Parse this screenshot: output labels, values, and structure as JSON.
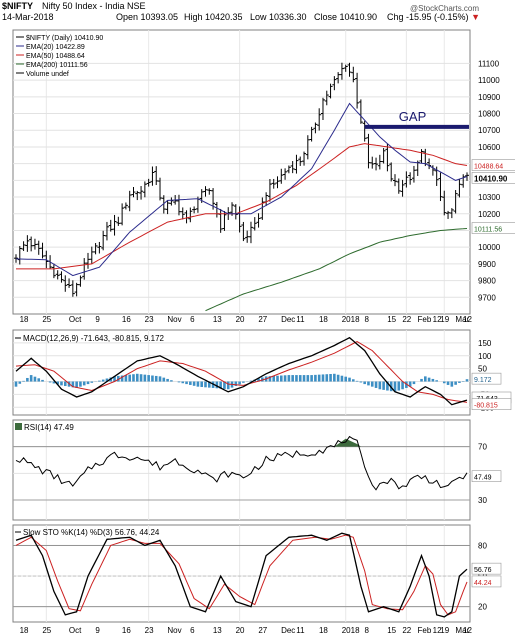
{
  "header": {
    "symbol": "$NIFTY",
    "name": "Nifty 50 Index - India  NSE",
    "date": "14-Mar-2018",
    "open": "Open 10393.05",
    "high": "High 10420.35",
    "low": "Low 10336.30",
    "close": "Close 10410.90",
    "chg": "Chg -15.95 (-0.15%)",
    "watermark": "@StockCharts.com"
  },
  "colors": {
    "price": "#000000",
    "ema20": "#2b2b8c",
    "ema50": "#cc2222",
    "ema200": "#2e6b2e",
    "gap": "#1a1a6e",
    "macd": "#000000",
    "signal": "#cc2222",
    "hist": "#3d8fc4",
    "rsi_fill": "#3d6b3d",
    "rsi": "#000000",
    "sto_k": "#000000",
    "sto_d": "#cc2222"
  },
  "chart_data": [
    {
      "type": "ohlc",
      "title": "$NIFTY (Daily) 10410.90",
      "legend": [
        {
          "name": "$NIFTY (Daily)",
          "value": "10410.90"
        },
        {
          "name": "EMA(20)",
          "value": "10422.89"
        },
        {
          "name": "EMA(50)",
          "value": "10488.64"
        },
        {
          "name": "EMA(200)",
          "value": "10111.56"
        },
        {
          "name": "Volume undef",
          "value": ""
        }
      ],
      "ylim": [
        9600,
        11300
      ],
      "yticks": [
        9700,
        9800,
        9900,
        10000,
        10100,
        10200,
        10300,
        10400,
        10500,
        10600,
        10700,
        10800,
        10900,
        11000,
        11100
      ],
      "value_labels": [
        "10488.64",
        "10410.90",
        "10111.56"
      ],
      "annotation": "GAP",
      "gap_level": 10720,
      "anchors": {
        "close": [
          [
            0,
            9950
          ],
          [
            3,
            10040
          ],
          [
            6,
            9980
          ],
          [
            9,
            9880
          ],
          [
            12,
            9800
          ],
          [
            15,
            9730
          ],
          [
            18,
            9880
          ],
          [
            21,
            9990
          ],
          [
            24,
            10100
          ],
          [
            27,
            10160
          ],
          [
            30,
            10320
          ],
          [
            33,
            10340
          ],
          [
            36,
            10440
          ],
          [
            39,
            10240
          ],
          [
            42,
            10270
          ],
          [
            45,
            10160
          ],
          [
            48,
            10290
          ],
          [
            51,
            10340
          ],
          [
            54,
            10130
          ],
          [
            57,
            10260
          ],
          [
            60,
            10050
          ],
          [
            63,
            10120
          ],
          [
            66,
            10330
          ],
          [
            69,
            10400
          ],
          [
            72,
            10480
          ],
          [
            75,
            10520
          ],
          [
            78,
            10680
          ],
          [
            81,
            10880
          ],
          [
            84,
            10990
          ],
          [
            87,
            11100
          ],
          [
            89,
            11000
          ],
          [
            91,
            10760
          ],
          [
            93,
            10500
          ],
          [
            95,
            10480
          ],
          [
            97,
            10560
          ],
          [
            99,
            10420
          ],
          [
            101,
            10360
          ],
          [
            103,
            10400
          ],
          [
            105,
            10440
          ],
          [
            107,
            10560
          ],
          [
            109,
            10480
          ],
          [
            111,
            10400
          ],
          [
            113,
            10200
          ],
          [
            115,
            10200
          ],
          [
            117,
            10400
          ],
          [
            119,
            10410
          ]
        ],
        "ema20": [
          [
            0,
            9930
          ],
          [
            8,
            9925
          ],
          [
            15,
            9830
          ],
          [
            22,
            9880
          ],
          [
            30,
            10090
          ],
          [
            40,
            10280
          ],
          [
            48,
            10290
          ],
          [
            56,
            10200
          ],
          [
            62,
            10200
          ],
          [
            70,
            10300
          ],
          [
            78,
            10470
          ],
          [
            84,
            10700
          ],
          [
            88,
            10860
          ],
          [
            92,
            10760
          ],
          [
            96,
            10660
          ],
          [
            100,
            10580
          ],
          [
            104,
            10510
          ],
          [
            108,
            10500
          ],
          [
            112,
            10450
          ],
          [
            116,
            10400
          ],
          [
            119,
            10423
          ]
        ],
        "ema50": [
          [
            0,
            9870
          ],
          [
            10,
            9870
          ],
          [
            20,
            9900
          ],
          [
            30,
            10030
          ],
          [
            40,
            10150
          ],
          [
            50,
            10200
          ],
          [
            58,
            10200
          ],
          [
            66,
            10270
          ],
          [
            74,
            10370
          ],
          [
            82,
            10500
          ],
          [
            88,
            10600
          ],
          [
            92,
            10620
          ],
          [
            98,
            10600
          ],
          [
            104,
            10580
          ],
          [
            110,
            10550
          ],
          [
            116,
            10500
          ],
          [
            119,
            10489
          ]
        ],
        "ema200": [
          [
            50,
            9620
          ],
          [
            60,
            9720
          ],
          [
            70,
            9790
          ],
          [
            80,
            9870
          ],
          [
            88,
            9960
          ],
          [
            96,
            10030
          ],
          [
            104,
            10070
          ],
          [
            112,
            10100
          ],
          [
            119,
            10112
          ]
        ]
      }
    },
    {
      "type": "line",
      "title": "MACD(12,26,9) -71.643, -80.815, 9.172",
      "ylim": [
        -130,
        200
      ],
      "yticks": [
        -100,
        -50,
        0,
        50,
        100,
        150
      ],
      "value_labels": [
        "9.172",
        "-71.643",
        "-80.815"
      ],
      "series": [
        {
          "name": "MACD(12,26,9)",
          "anchors": [
            [
              0,
              40
            ],
            [
              4,
              90
            ],
            [
              8,
              40
            ],
            [
              12,
              -30
            ],
            [
              16,
              -60
            ],
            [
              20,
              -40
            ],
            [
              26,
              20
            ],
            [
              32,
              80
            ],
            [
              38,
              100
            ],
            [
              42,
              70
            ],
            [
              48,
              20
            ],
            [
              52,
              -10
            ],
            [
              56,
              -40
            ],
            [
              60,
              -20
            ],
            [
              66,
              30
            ],
            [
              72,
              70
            ],
            [
              78,
              100
            ],
            [
              84,
              140
            ],
            [
              88,
              170
            ],
            [
              92,
              120
            ],
            [
              96,
              30
            ],
            [
              100,
              -40
            ],
            [
              104,
              -60
            ],
            [
              108,
              -20
            ],
            [
              112,
              -50
            ],
            [
              115,
              -90
            ],
            [
              119,
              -72
            ]
          ]
        },
        {
          "name": "Signal",
          "anchors": [
            [
              0,
              60
            ],
            [
              5,
              65
            ],
            [
              10,
              40
            ],
            [
              15,
              -20
            ],
            [
              20,
              -35
            ],
            [
              26,
              0
            ],
            [
              32,
              50
            ],
            [
              38,
              80
            ],
            [
              44,
              70
            ],
            [
              50,
              40
            ],
            [
              56,
              -10
            ],
            [
              60,
              -15
            ],
            [
              66,
              10
            ],
            [
              72,
              45
            ],
            [
              78,
              75
            ],
            [
              84,
              110
            ],
            [
              90,
              155
            ],
            [
              94,
              120
            ],
            [
              98,
              60
            ],
            [
              102,
              0
            ],
            [
              106,
              -40
            ],
            [
              110,
              -50
            ],
            [
              114,
              -70
            ],
            [
              119,
              -81
            ]
          ]
        }
      ],
      "histogram_anchors": [
        [
          0,
          -20
        ],
        [
          4,
          25
        ],
        [
          8,
          0
        ],
        [
          12,
          -15
        ],
        [
          16,
          -25
        ],
        [
          20,
          -5
        ],
        [
          26,
          20
        ],
        [
          32,
          30
        ],
        [
          38,
          20
        ],
        [
          42,
          0
        ],
        [
          48,
          -20
        ],
        [
          52,
          -25
        ],
        [
          56,
          -30
        ],
        [
          60,
          -5
        ],
        [
          66,
          20
        ],
        [
          72,
          25
        ],
        [
          78,
          25
        ],
        [
          84,
          30
        ],
        [
          88,
          15
        ],
        [
          92,
          -10
        ],
        [
          96,
          -30
        ],
        [
          100,
          -40
        ],
        [
          104,
          -20
        ],
        [
          108,
          20
        ],
        [
          112,
          0
        ],
        [
          115,
          -20
        ],
        [
          119,
          9
        ]
      ]
    },
    {
      "type": "line",
      "title": "RSI(14) 47.49",
      "ylim": [
        15,
        90
      ],
      "yticks": [
        30,
        50,
        70
      ],
      "ref_lines": [
        70,
        30
      ],
      "value_labels": [
        "47.49"
      ],
      "series": [
        {
          "name": "RSI(14)",
          "anchors": [
            [
              0,
              62
            ],
            [
              5,
              55
            ],
            [
              10,
              48
            ],
            [
              15,
              40
            ],
            [
              20,
              55
            ],
            [
              26,
              64
            ],
            [
              32,
              62
            ],
            [
              38,
              55
            ],
            [
              42,
              60
            ],
            [
              48,
              52
            ],
            [
              52,
              45
            ],
            [
              56,
              50
            ],
            [
              60,
              47
            ],
            [
              66,
              60
            ],
            [
              72,
              64
            ],
            [
              78,
              66
            ],
            [
              84,
              70
            ],
            [
              87,
              76
            ],
            [
              90,
              72
            ],
            [
              92,
              52
            ],
            [
              95,
              40
            ],
            [
              98,
              45
            ],
            [
              102,
              40
            ],
            [
              106,
              48
            ],
            [
              110,
              45
            ],
            [
              114,
              38
            ],
            [
              117,
              48
            ],
            [
              119,
              47.5
            ]
          ]
        }
      ]
    },
    {
      "type": "line",
      "title": "Slow STO %K(14) %D(3) 56.76, 44.24",
      "ylim": [
        5,
        100
      ],
      "yticks": [
        20,
        50,
        80
      ],
      "ref_lines": [
        80,
        20
      ],
      "value_labels": [
        "56.76",
        "44.24"
      ],
      "series": [
        {
          "name": "%K(14)",
          "anchors": [
            [
              0,
              85
            ],
            [
              4,
              90
            ],
            [
              7,
              70
            ],
            [
              10,
              35
            ],
            [
              13,
              12
            ],
            [
              16,
              15
            ],
            [
              19,
              50
            ],
            [
              24,
              86
            ],
            [
              30,
              88
            ],
            [
              34,
              80
            ],
            [
              38,
              85
            ],
            [
              42,
              60
            ],
            [
              46,
              20
            ],
            [
              50,
              15
            ],
            [
              54,
              50
            ],
            [
              58,
              25
            ],
            [
              62,
              20
            ],
            [
              66,
              70
            ],
            [
              72,
              88
            ],
            [
              78,
              90
            ],
            [
              82,
              85
            ],
            [
              86,
              92
            ],
            [
              88,
              90
            ],
            [
              91,
              40
            ],
            [
              93,
              15
            ],
            [
              97,
              20
            ],
            [
              101,
              15
            ],
            [
              104,
              40
            ],
            [
              107,
              70
            ],
            [
              109,
              50
            ],
            [
              111,
              12
            ],
            [
              113,
              10
            ],
            [
              115,
              15
            ],
            [
              117,
              50
            ],
            [
              119,
              56.76
            ]
          ]
        },
        {
          "name": "%D(3)",
          "anchors": [
            [
              0,
              80
            ],
            [
              4,
              88
            ],
            [
              8,
              75
            ],
            [
              11,
              45
            ],
            [
              14,
              18
            ],
            [
              17,
              16
            ],
            [
              20,
              42
            ],
            [
              25,
              80
            ],
            [
              30,
              86
            ],
            [
              34,
              82
            ],
            [
              38,
              82
            ],
            [
              43,
              62
            ],
            [
              47,
              28
            ],
            [
              51,
              18
            ],
            [
              55,
              42
            ],
            [
              59,
              30
            ],
            [
              63,
              22
            ],
            [
              67,
              60
            ],
            [
              73,
              85
            ],
            [
              79,
              88
            ],
            [
              83,
              86
            ],
            [
              87,
              90
            ],
            [
              89,
              88
            ],
            [
              92,
              55
            ],
            [
              94,
              22
            ],
            [
              98,
              18
            ],
            [
              102,
              17
            ],
            [
              105,
              35
            ],
            [
              108,
              60
            ],
            [
              110,
              52
            ],
            [
              112,
              22
            ],
            [
              114,
              12
            ],
            [
              116,
              15
            ],
            [
              118,
              35
            ],
            [
              119,
              44.24
            ]
          ]
        }
      ]
    }
  ],
  "x_labels": [
    "18",
    "25",
    "Oct",
    "9",
    "16",
    "23",
    "Nov",
    "6",
    "13",
    "20",
    "27",
    "Dec",
    "11",
    "18",
    "2018",
    "8",
    "15",
    "22",
    "Feb",
    "12",
    "19",
    "Mar",
    "12"
  ]
}
